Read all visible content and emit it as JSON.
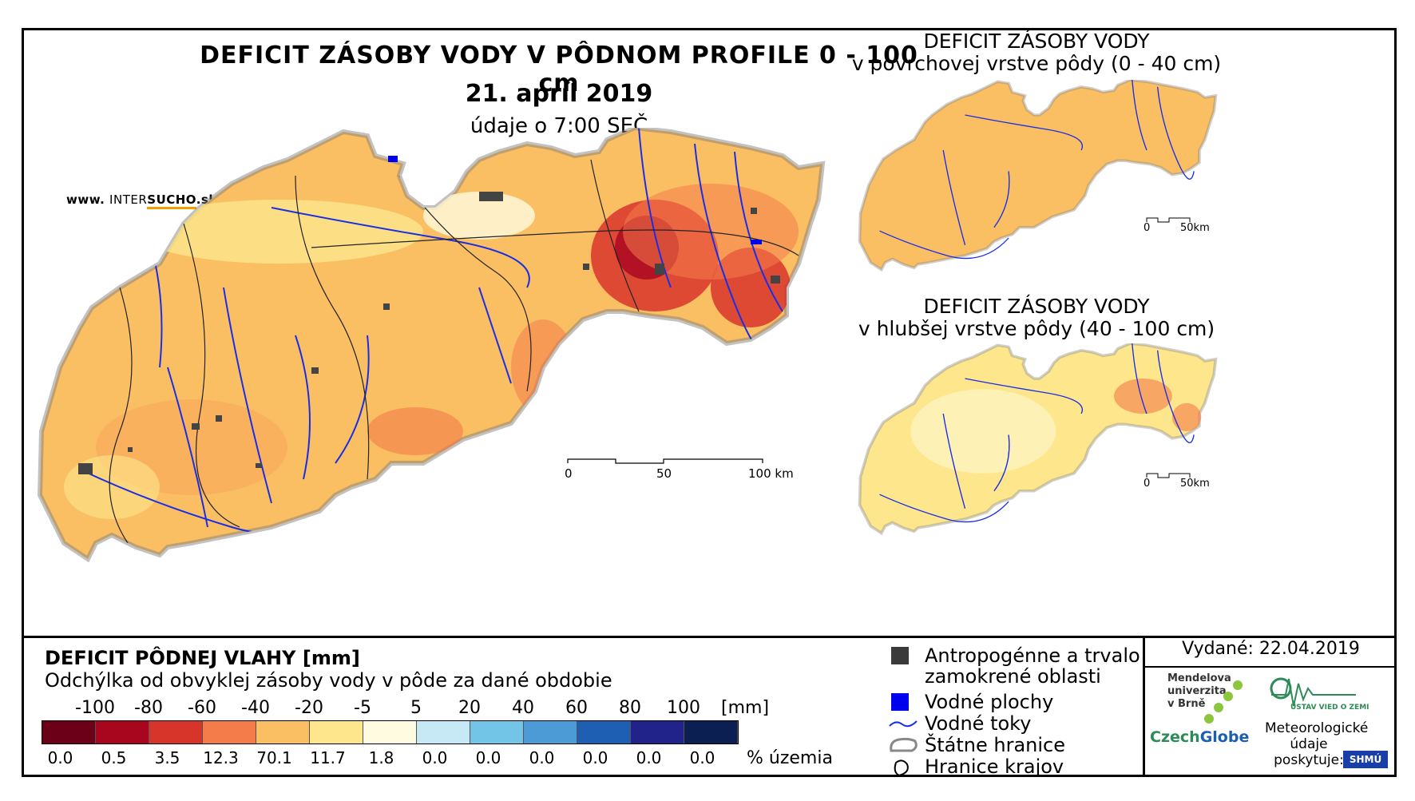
{
  "main": {
    "title": "DEFICIT ZÁSOBY VODY V PÔDNOM PROFILE 0 - 100 cm",
    "date": "21. apríl 2019",
    "time_note": "údaje o 7:00 SEČ",
    "website_prefix": "www.",
    "website_brand_a": "INTER",
    "website_brand_b": "SUCHO",
    "website_suffix": ".sk",
    "scale": {
      "t0": "0",
      "t50": "50",
      "t100": "100 km"
    }
  },
  "inset_top": {
    "title_line1": "DEFICIT ZÁSOBY VODY",
    "title_line2": "v povrchovej vrstve pôdy (0 - 40 cm)",
    "scale": {
      "t0": "0",
      "t50": "50km"
    }
  },
  "inset_bottom": {
    "title_line1": "DEFICIT ZÁSOBY VODY",
    "title_line2": "v hlubšej vrstve pôdy (40 - 100 cm)",
    "scale": {
      "t0": "0",
      "t50": "50km"
    }
  },
  "legend": {
    "title": "DEFICIT PÔDNEJ VLAHY [mm]",
    "subtitle": "Odchýlka od obvyklej zásoby vody v pôde za dané obdobie",
    "unit": "[mm]",
    "pct_unit": "% územia",
    "class_bounds": [
      "-100",
      "-80",
      "-60",
      "-40",
      "-20",
      "-5",
      "5",
      "20",
      "40",
      "60",
      "80",
      "100"
    ],
    "colors": [
      "#6b0018",
      "#a8051f",
      "#d7342a",
      "#f47c4a",
      "#fbbf63",
      "#fde68c",
      "#fffbe0",
      "#c7e9f5",
      "#72c5e6",
      "#4c9bd6",
      "#1f5fb3",
      "#22238a",
      "#0b1f52"
    ],
    "percentages": [
      "0.0",
      "0.5",
      "3.5",
      "12.3",
      "70.1",
      "11.7",
      "1.8",
      "0.0",
      "0.0",
      "0.0",
      "0.0",
      "0.0",
      "0.0"
    ]
  },
  "symbols": {
    "anthropogenic": {
      "line1": "Antropogénne a trvalo",
      "line2": "zamokrené oblasti",
      "color": "#3a3a3a"
    },
    "water_areas": {
      "label": "Vodné plochy",
      "color": "#0000ee"
    },
    "rivers": {
      "label": "Vodné toky",
      "color": "#1a2ee6"
    },
    "state_border": {
      "label": "Štátne hranice"
    },
    "region_border": {
      "label": "Hranice krajov"
    }
  },
  "issued": "Vydané: 22.04.2019",
  "logos": {
    "mendel_l1": "Mendelova",
    "mendel_l2": "univerzita",
    "mendel_l3": "v Brně",
    "czechglobe_a": "Czech",
    "czechglobe_b": "Globe",
    "uvz": "ÚSTAV VIED O ZEMI",
    "meteo_l1": "Meteorologické",
    "meteo_l2": "údaje",
    "meteo_l3": "poskytuje:",
    "shmu": "SHMÚ"
  }
}
